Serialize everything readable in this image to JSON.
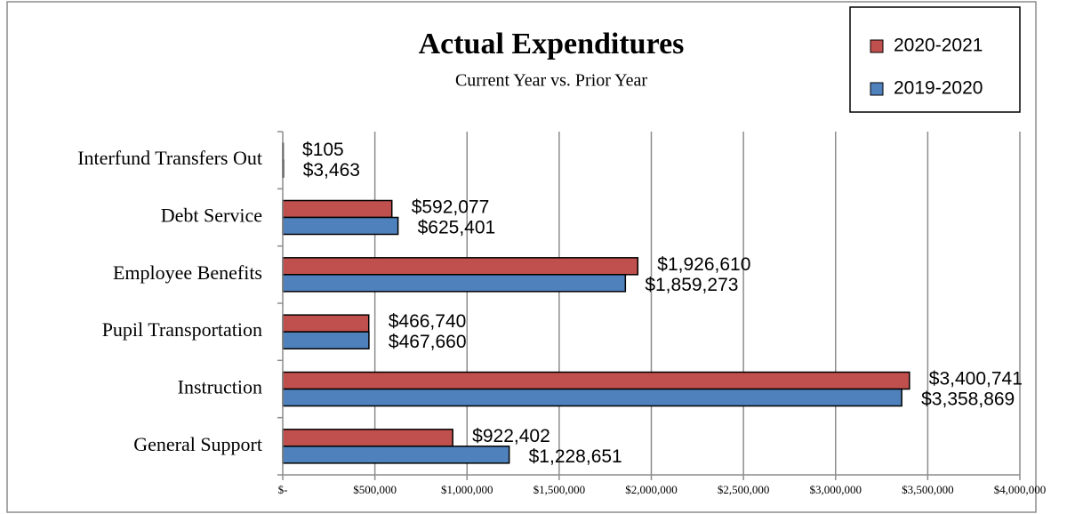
{
  "chart_data": {
    "type": "barh",
    "title": "Actual Expenditures",
    "subtitle": "Current Year vs. Prior Year",
    "categories": [
      "Interfund Transfers Out",
      "Debt Service",
      "Employee Benefits",
      "Pupil Transportation",
      "Instruction",
      "General Support"
    ],
    "series": [
      {
        "name": "2020-2021",
        "color": "#c0504d",
        "values": [
          105,
          592077,
          1926610,
          466740,
          3400741,
          922402
        ],
        "value_labels": [
          "$105",
          "$592,077",
          "$1,926,610",
          "$466,740",
          "$3,400,741",
          "$922,402"
        ]
      },
      {
        "name": "2019-2020",
        "color": "#4f81bd",
        "values": [
          3463,
          625401,
          1859273,
          467660,
          3358869,
          1228651
        ],
        "value_labels": [
          "$3,463",
          "$625,401",
          "$1,859,273",
          "$467,660",
          "$3,358,869",
          "$1,228,651"
        ]
      }
    ],
    "xlim": [
      0,
      4000000
    ],
    "xticks": [
      {
        "value": 0,
        "label": "$-"
      },
      {
        "value": 500000,
        "label": "$500,000"
      },
      {
        "value": 1000000,
        "label": "$1,000,000"
      },
      {
        "value": 1500000,
        "label": "$1,500,000"
      },
      {
        "value": 2000000,
        "label": "$2,000,000"
      },
      {
        "value": 2500000,
        "label": "$2,500,000"
      },
      {
        "value": 3000000,
        "label": "$3,000,000"
      },
      {
        "value": 3500000,
        "label": "$3,500,000"
      },
      {
        "value": 4000000,
        "label": "$4,000,000"
      }
    ],
    "grid": true,
    "legend": "upper right"
  }
}
